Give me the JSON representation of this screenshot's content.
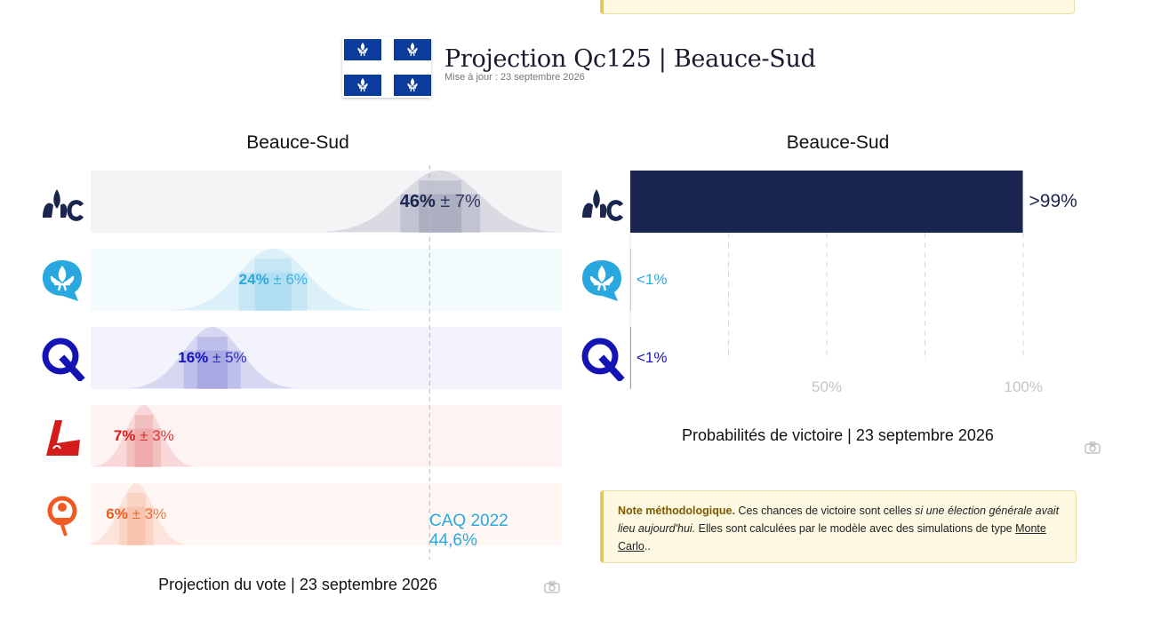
{
  "header": {
    "title": "Projection Qc125 | Beauce-Sud",
    "updated": "Mise à jour : 23 septembre 2026"
  },
  "vote_panel": {
    "title": "Beauce-Sud",
    "caption": "Projection du vote | 23 septembre 2026",
    "ref_label_1": "CAQ 2022",
    "ref_label_2": "44,6%",
    "rows": [
      {
        "party": "CAQ",
        "icon": "caq-logo-icon",
        "value_label": "46%",
        "margin_label": "± 7%",
        "color": "#1a2550"
      },
      {
        "party": "PQ",
        "icon": "pq-logo-icon",
        "value_label": "24%",
        "margin_label": "± 6%",
        "color": "#29a8e0"
      },
      {
        "party": "PCQ",
        "icon": "pcq-logo-icon",
        "value_label": "16%",
        "margin_label": "± 5%",
        "color": "#1414b4"
      },
      {
        "party": "PLQ",
        "icon": "plq-logo-icon",
        "value_label": "7%",
        "margin_label": "± 3%",
        "color": "#d41c1c"
      },
      {
        "party": "QS",
        "icon": "qs-logo-icon",
        "value_label": "6%",
        "margin_label": "± 3%",
        "color": "#f05a22"
      }
    ]
  },
  "prob_panel": {
    "title": "Beauce-Sud",
    "caption": "Probabilités de victoire | 23 septembre 2026",
    "tick_labels": [
      "50%",
      "100%"
    ],
    "rows": [
      {
        "party": "CAQ",
        "icon": "caq-logo-icon",
        "label": ">99%",
        "color": "#1a2550"
      },
      {
        "party": "PQ",
        "icon": "pq-logo-icon",
        "label": "<1%",
        "color": "#29a8e0"
      },
      {
        "party": "PCQ",
        "icon": "pcq-logo-icon",
        "label": "<1%",
        "color": "#1414b4"
      }
    ]
  },
  "note": {
    "bold": "Note méthodologique.",
    "text1": " Ces chances de victoire sont celles ",
    "italic": "si une élection générale avait lieu aujourd'hui.",
    "text2": " Elles sont calculées par le modèle avec des simulations de type ",
    "link": "Monte Carlo",
    "text3": ".."
  },
  "chart_data": [
    {
      "type": "bar",
      "title": "Beauce-Sud",
      "caption": "Projection du vote | 23 septembre 2026",
      "categories": [
        "CAQ",
        "PQ",
        "PCQ",
        "PLQ",
        "QS"
      ],
      "values": [
        46,
        24,
        16,
        7,
        6
      ],
      "margins": [
        7,
        6,
        5,
        3,
        3
      ],
      "reference": {
        "label": "CAQ 2022",
        "value": 44.6
      },
      "xlim": [
        0,
        62
      ],
      "colors": [
        "#1a2550",
        "#29a8e0",
        "#1414b4",
        "#d41c1c",
        "#f05a22"
      ]
    },
    {
      "type": "bar",
      "title": "Beauce-Sud",
      "caption": "Probabilités de victoire | 23 septembre 2026",
      "categories": [
        "CAQ",
        "PQ",
        "PCQ"
      ],
      "values": [
        99.9,
        0.1,
        0.1
      ],
      "value_labels": [
        ">99%",
        "<1%",
        "<1%"
      ],
      "xlim": [
        0,
        100
      ],
      "x_ticks": [
        25,
        50,
        75,
        100
      ],
      "colors": [
        "#1a2550",
        "#29a8e0",
        "#1414b4"
      ]
    }
  ]
}
